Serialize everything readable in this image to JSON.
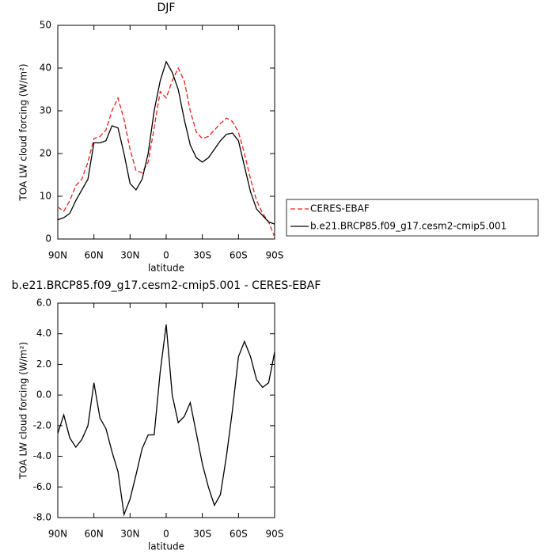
{
  "chart_data": [
    {
      "type": "line",
      "title": "DJF",
      "xlabel": "latitude",
      "ylabel": "TOA LW cloud forcing (W/m²)",
      "x": [
        90,
        85,
        80,
        75,
        70,
        65,
        60,
        55,
        50,
        45,
        40,
        35,
        30,
        25,
        20,
        15,
        10,
        5,
        0,
        -5,
        -10,
        -15,
        -20,
        -25,
        -30,
        -35,
        -40,
        -45,
        -50,
        -55,
        -60,
        -65,
        -70,
        -75,
        -80,
        -85,
        -90
      ],
      "xlim": [
        90,
        -90
      ],
      "xticks": [
        {
          "value": 90,
          "label": "90N"
        },
        {
          "value": 60,
          "label": "60N"
        },
        {
          "value": 30,
          "label": "30N"
        },
        0,
        {
          "value": -30,
          "label": "30S"
        },
        {
          "value": -60,
          "label": "60S"
        },
        {
          "value": -90,
          "label": "90S"
        }
      ],
      "ylim": [
        0,
        50
      ],
      "yticks": [
        0,
        10,
        20,
        30,
        40,
        50
      ],
      "legend": "outside-right",
      "series": [
        {
          "name": "CERES-EBAF",
          "color": "#e8201a",
          "dash": true,
          "values": [
            7.5,
            6.5,
            9,
            12.5,
            14,
            18,
            23.5,
            24,
            25.5,
            30,
            33,
            28,
            21,
            16,
            15.5,
            18,
            26,
            34.5,
            33,
            37,
            40,
            37,
            30,
            25,
            23.5,
            24,
            25.5,
            27,
            28.3,
            27.5,
            25,
            20,
            14,
            9,
            6,
            4,
            0.5
          ]
        },
        {
          "name": "b.e21.BRCP85.f09_g17.cesm2-cmip5.001",
          "color": "#000000",
          "dash": false,
          "values": [
            4.5,
            5,
            6,
            9,
            11.5,
            14,
            22.5,
            22.5,
            23,
            26.5,
            26,
            20,
            13,
            11.5,
            14,
            20,
            30,
            37,
            41.5,
            39,
            35,
            28,
            22,
            19,
            18,
            19,
            21,
            23,
            24.5,
            24.8,
            23,
            17,
            11,
            7,
            5.5,
            4,
            3.5
          ]
        }
      ]
    },
    {
      "type": "line",
      "title": "b.e21.BRCP85.f09_g17.cesm2-cmip5.001 - CERES-EBAF",
      "xlabel": "latitude",
      "ylabel": "TOA LW cloud forcing (W/m²)",
      "x": [
        90,
        85,
        80,
        75,
        70,
        65,
        60,
        55,
        50,
        45,
        40,
        35,
        30,
        25,
        20,
        15,
        10,
        5,
        0,
        -5,
        -10,
        -15,
        -20,
        -25,
        -30,
        -35,
        -40,
        -45,
        -50,
        -55,
        -60,
        -65,
        -70,
        -75,
        -80,
        -85,
        -90
      ],
      "xlim": [
        90,
        -90
      ],
      "xticks": [
        {
          "value": 90,
          "label": "90N"
        },
        {
          "value": 60,
          "label": "60N"
        },
        {
          "value": 30,
          "label": "30N"
        },
        0,
        {
          "value": -30,
          "label": "30S"
        },
        {
          "value": -60,
          "label": "60S"
        },
        {
          "value": -90,
          "label": "90S"
        }
      ],
      "ylim": [
        -8,
        6
      ],
      "yticks": [
        {
          "value": -8,
          "label": "-8.0"
        },
        {
          "value": -6,
          "label": "-6.0"
        },
        {
          "value": -4,
          "label": "-4.0"
        },
        {
          "value": -2,
          "label": "-2.0"
        },
        {
          "value": 0,
          "label": "0.0"
        },
        {
          "value": 2,
          "label": "2.0"
        },
        {
          "value": 4,
          "label": "4.0"
        },
        {
          "value": 6,
          "label": "6.0"
        }
      ],
      "series": [
        {
          "color": "#000000",
          "dash": false,
          "values": [
            -2.5,
            -1.3,
            -2.8,
            -3.4,
            -2.9,
            -2,
            0.8,
            -1.5,
            -2.2,
            -3.7,
            -5,
            -7.8,
            -6.8,
            -5.2,
            -3.5,
            -2.6,
            -2.6,
            1.5,
            4.6,
            0,
            -1.8,
            -1.4,
            -0.5,
            -2.5,
            -4.5,
            -6,
            -7.2,
            -6.5,
            -4,
            -1,
            2.5,
            3.5,
            2.5,
            1,
            0.5,
            0.8,
            2.8
          ]
        }
      ]
    }
  ]
}
